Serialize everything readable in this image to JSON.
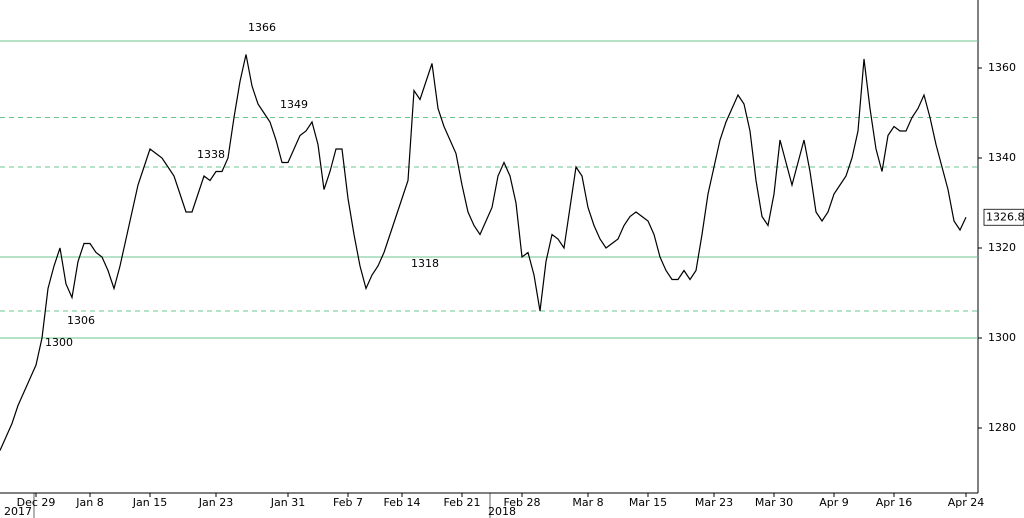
{
  "chart_data": {
    "type": "line",
    "categories": [
      null,
      null,
      null,
      null,
      null,
      null,
      "Dec 29",
      null,
      null,
      null,
      null,
      null,
      null,
      null,
      null,
      "Jan 8",
      null,
      null,
      null,
      null,
      null,
      null,
      null,
      null,
      null,
      "Jan 15",
      null,
      null,
      null,
      null,
      null,
      null,
      null,
      null,
      null,
      null,
      "Jan 23",
      null,
      null,
      null,
      null,
      null,
      null,
      null,
      null,
      null,
      null,
      null,
      "Jan 31",
      null,
      null,
      null,
      null,
      null,
      null,
      null,
      null,
      null,
      "Feb 7",
      null,
      null,
      null,
      null,
      null,
      null,
      null,
      null,
      "Feb 14",
      null,
      null,
      null,
      null,
      null,
      null,
      null,
      null,
      null,
      "Feb 21",
      null,
      null,
      null,
      null,
      null,
      null,
      null,
      null,
      null,
      "Feb 28",
      null,
      null,
      null,
      null,
      null,
      null,
      null,
      null,
      null,
      null,
      "Mar 8",
      null,
      null,
      null,
      null,
      null,
      null,
      null,
      null,
      null,
      "Mar 15",
      null,
      null,
      null,
      null,
      null,
      null,
      null,
      null,
      null,
      null,
      "Mar 23",
      null,
      null,
      null,
      null,
      null,
      null,
      null,
      null,
      null,
      "Mar 30",
      null,
      null,
      null,
      null,
      null,
      null,
      null,
      null,
      null,
      "Apr 9",
      null,
      null,
      null,
      null,
      null,
      null,
      null,
      null,
      null,
      "Apr 16",
      null,
      null,
      null,
      null,
      null,
      null,
      null,
      null,
      null,
      null,
      null,
      "Apr 24"
    ],
    "series": [
      {
        "color": "#000000",
        "values": [
          1275,
          1278,
          1281,
          1285,
          1288,
          1291,
          1294,
          1300,
          1311,
          1316,
          1320,
          1312,
          1309,
          1317,
          1321,
          1321,
          1319,
          1318,
          1315,
          1311,
          1316,
          1322,
          1328,
          1334,
          1338,
          1342,
          1341,
          1340,
          1338,
          1336,
          1332,
          1328,
          1328,
          1332,
          1336,
          1335,
          1337,
          1337,
          1340,
          1349,
          1357,
          1363,
          1356,
          1352,
          1350,
          1348,
          1344,
          1339,
          1339,
          1342,
          1345,
          1346,
          1348,
          1343,
          1333,
          1337,
          1342,
          1342,
          1331,
          1323,
          1316,
          1311,
          1314,
          1316,
          1319,
          1323,
          1327,
          1331,
          1335,
          1355,
          1353,
          1357,
          1361,
          1351,
          1347,
          1344,
          1341,
          1334,
          1328,
          1325,
          1323,
          1326,
          1329,
          1336,
          1339,
          1336,
          1330,
          1318,
          1319,
          1314,
          1306,
          1317,
          1323,
          1322,
          1320,
          1329,
          1338,
          1336,
          1329,
          1325,
          1322,
          1320,
          1321,
          1322,
          1325,
          1327,
          1328,
          1327,
          1326,
          1323,
          1318,
          1315,
          1313,
          1313,
          1315,
          1313,
          1315,
          1323,
          1332,
          1338,
          1344,
          1348,
          1351,
          1354,
          1352,
          1346,
          1335,
          1327,
          1325,
          1332,
          1344,
          1339,
          1334,
          1339,
          1344,
          1337,
          1328,
          1326,
          1328,
          1332,
          1334,
          1336,
          1340,
          1346,
          1362,
          1351,
          1342,
          1337,
          1345,
          1347,
          1346,
          1346,
          1349,
          1351,
          1354,
          1349,
          1343,
          1338,
          1333,
          1326,
          1324,
          1326.83
        ]
      }
    ],
    "last_price": 1326.83,
    "year_labels": [
      "2017",
      "2018"
    ],
    "levels": [
      {
        "value": 1366,
        "dashed": false
      },
      {
        "value": 1349,
        "dashed": true
      },
      {
        "value": 1338,
        "dashed": true
      },
      {
        "value": 1318,
        "dashed": false
      },
      {
        "value": 1306,
        "dashed": true
      },
      {
        "value": 1300,
        "dashed": false
      }
    ],
    "level_color": "#6cc48c",
    "ylim": [
      1265,
      1375
    ],
    "yticks": [
      1280,
      1300,
      1320,
      1340,
      1360
    ]
  }
}
